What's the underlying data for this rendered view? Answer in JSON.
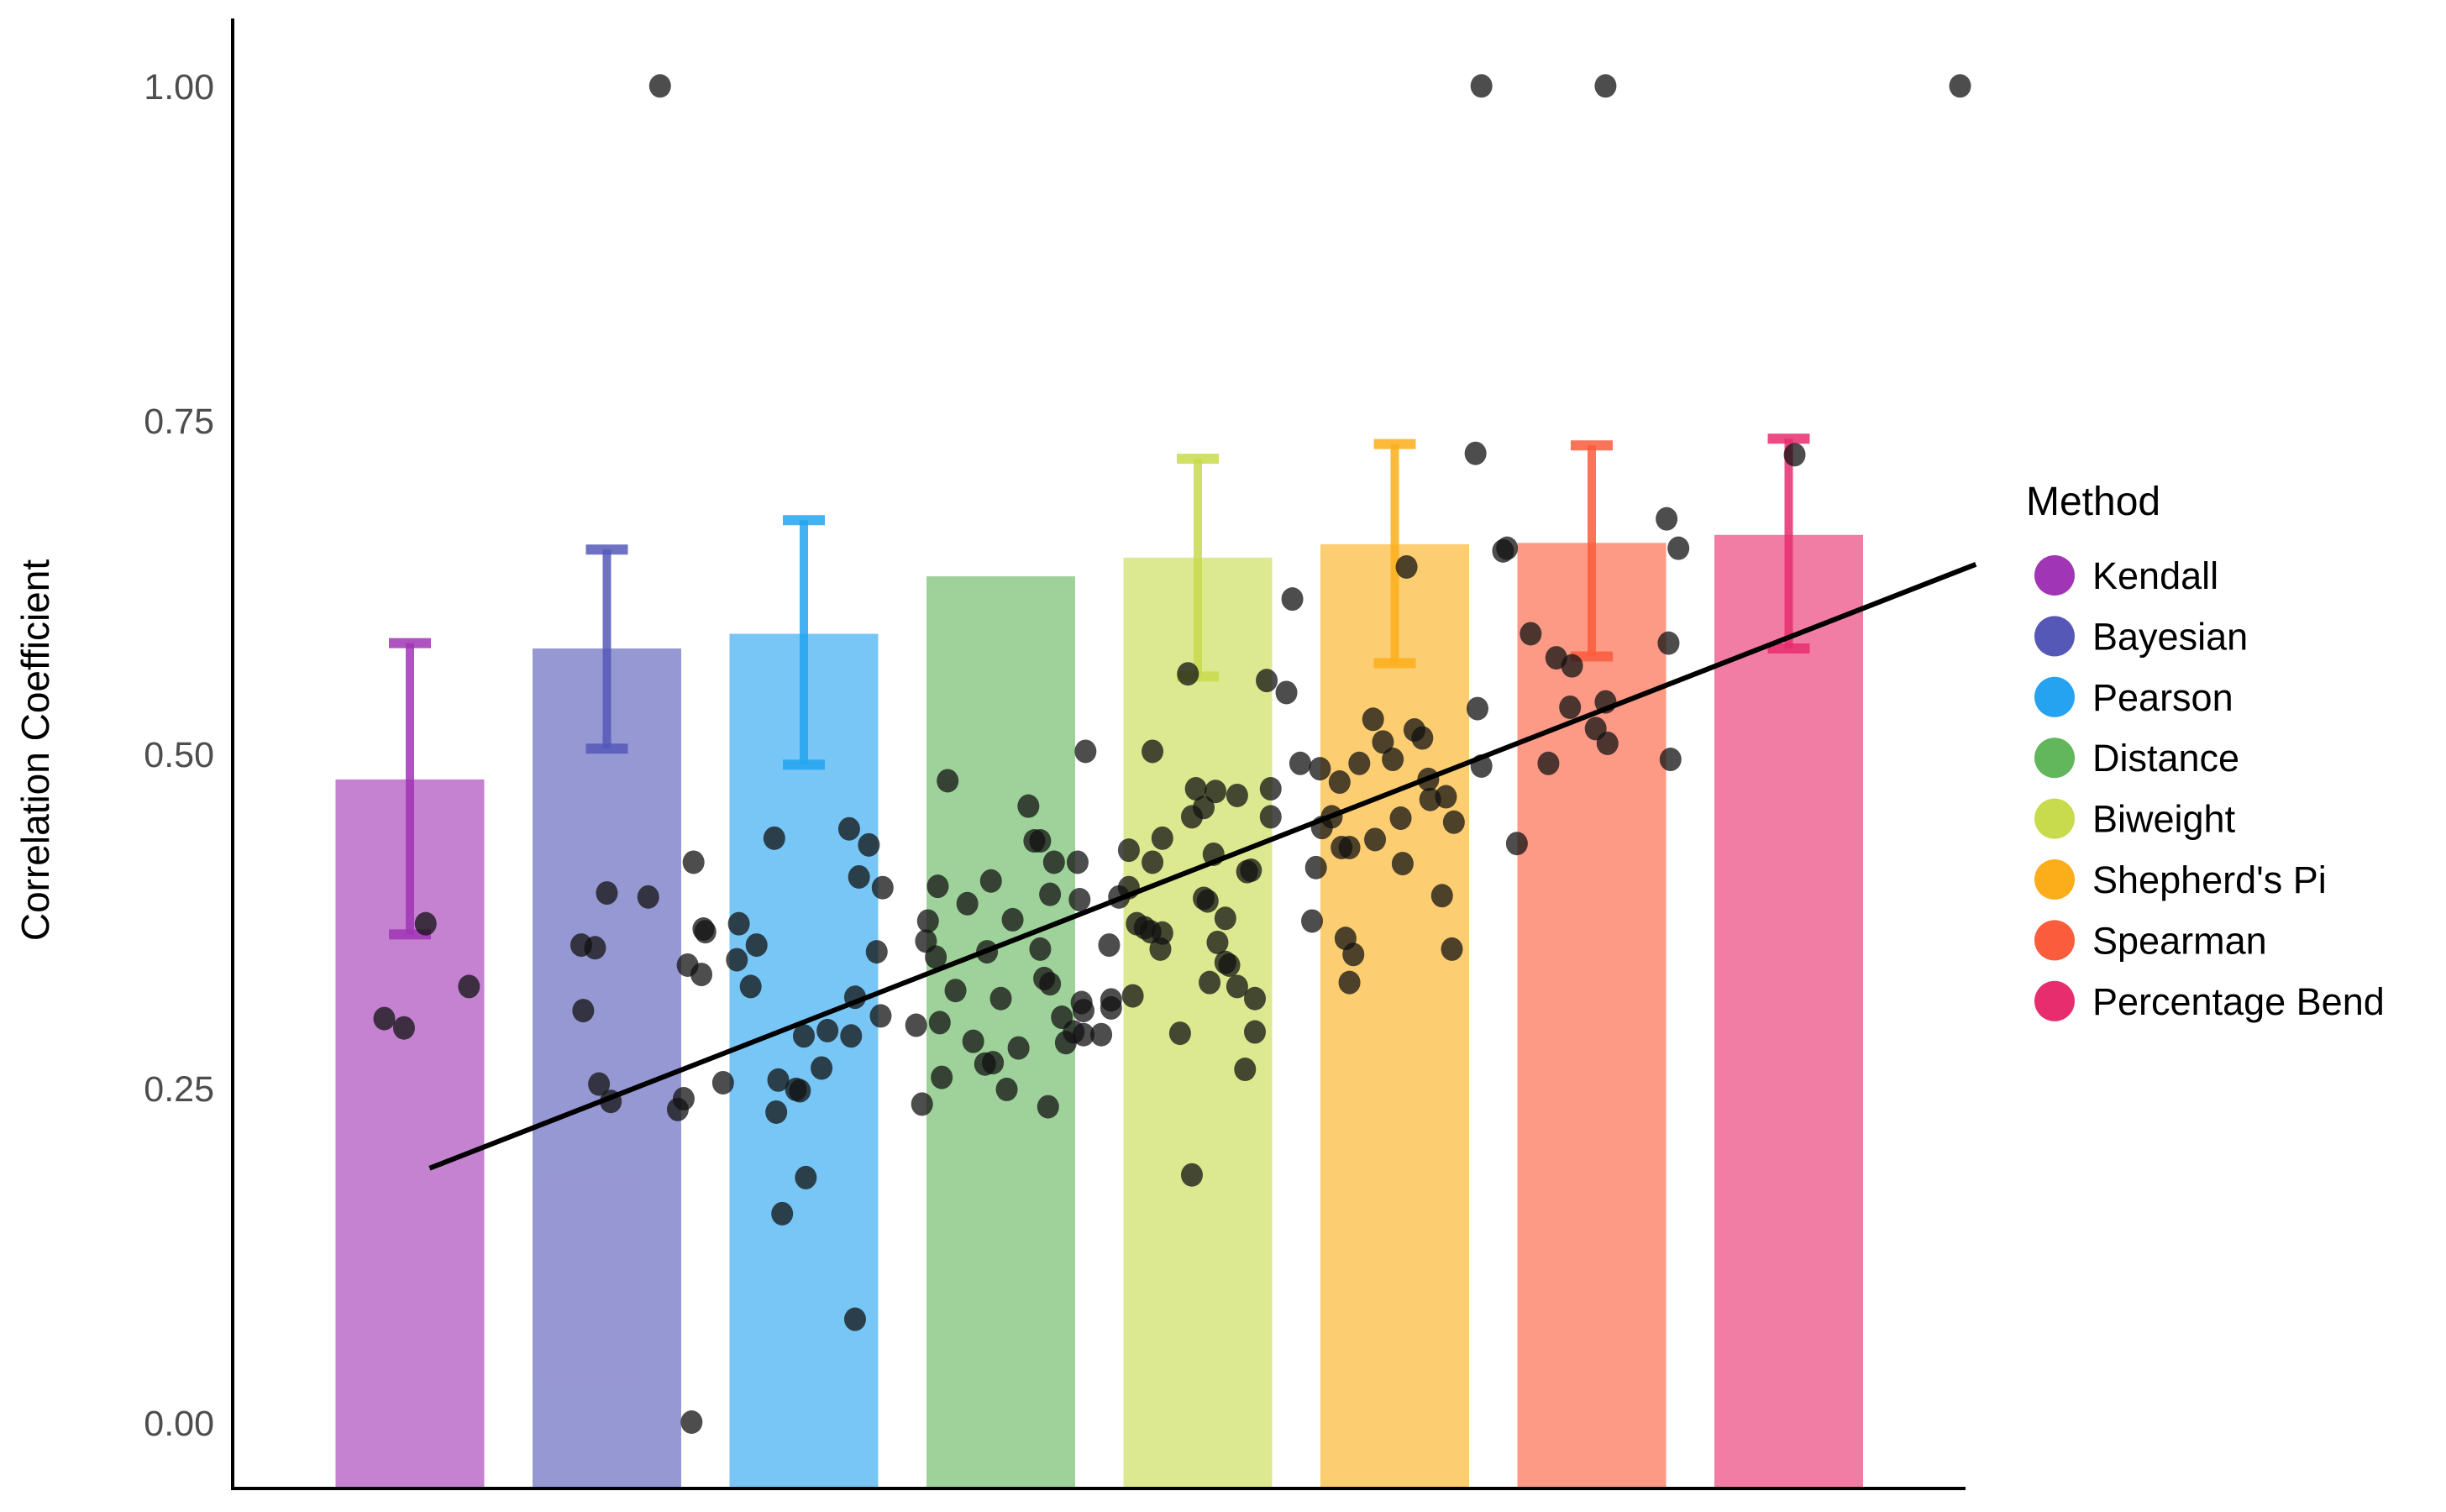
{
  "chart_data": {
    "type": "bar",
    "title": "",
    "xlabel": "",
    "ylabel": "Correlation Coefficient",
    "ylim": [
      -0.05,
      1.05
    ],
    "yticks": [
      0.0,
      0.25,
      0.5,
      0.75,
      1.0
    ],
    "ytick_labels": [
      "0.00",
      "0.25",
      "0.50",
      "0.75",
      "1.00"
    ],
    "grid": false,
    "legend_position": "right",
    "legend_title": "Method",
    "categories": [
      "Kendall",
      "Bayesian",
      "Pearson",
      "Distance",
      "Biweight",
      "Shepherd's Pi",
      "Spearman",
      "Percentage Bend"
    ],
    "colors": [
      "#A035B5",
      "#5658B8",
      "#25A3F0",
      "#62B65C",
      "#C8DB4C",
      "#FBAE1A",
      "#FA5C3C",
      "#E82D6E"
    ],
    "values": [
      0.481,
      0.579,
      0.59,
      0.633,
      0.647,
      0.657,
      0.658,
      0.664
    ],
    "error_bars": [
      {
        "upper": 0.583,
        "lower": 0.365
      },
      {
        "upper": 0.653,
        "lower": 0.504
      },
      {
        "upper": 0.675,
        "lower": 0.492
      },
      null,
      {
        "upper": 0.721,
        "lower": 0.558
      },
      {
        "upper": 0.732,
        "lower": 0.568
      },
      {
        "upper": 0.731,
        "lower": 0.573
      },
      {
        "upper": 0.736,
        "lower": 0.579
      }
    ],
    "trend_line": {
      "x_start": 0.1,
      "y_start": 0.19,
      "x_end": 7.95,
      "y_end": 0.642,
      "color": "#000000"
    },
    "scatter_points": [
      [
        -0.13,
        0.302
      ],
      [
        -0.03,
        0.295
      ],
      [
        0.08,
        0.373
      ],
      [
        0.3,
        0.326
      ],
      [
        0.87,
        0.357
      ],
      [
        0.94,
        0.355
      ],
      [
        0.88,
        0.308
      ],
      [
        0.96,
        0.253
      ],
      [
        1.02,
        0.24
      ],
      [
        1.0,
        0.396
      ],
      [
        1.21,
        0.393
      ],
      [
        1.44,
        0.419
      ],
      [
        1.36,
        0.234
      ],
      [
        1.39,
        0.242
      ],
      [
        1.59,
        0.254
      ],
      [
        1.41,
        0.342
      ],
      [
        1.48,
        0.335
      ],
      [
        1.49,
        0.369
      ],
      [
        1.5,
        0.367
      ],
      [
        1.67,
        0.373
      ],
      [
        1.66,
        0.346
      ],
      [
        1.73,
        0.326
      ],
      [
        1.76,
        0.357
      ],
      [
        1.85,
        0.437
      ],
      [
        1.86,
        0.232
      ],
      [
        1.87,
        0.256
      ],
      [
        1.89,
        0.156
      ],
      [
        1.96,
        0.249
      ],
      [
        1.98,
        0.248
      ],
      [
        2.0,
        0.289
      ],
      [
        2.01,
        0.183
      ],
      [
        2.09,
        0.265
      ],
      [
        2.12,
        0.293
      ],
      [
        2.23,
        0.444
      ],
      [
        2.28,
        0.408
      ],
      [
        2.33,
        0.432
      ],
      [
        2.24,
        0.289
      ],
      [
        2.26,
        0.318
      ],
      [
        2.37,
        0.352
      ],
      [
        2.4,
        0.4
      ],
      [
        2.39,
        0.304
      ],
      [
        2.57,
        0.297
      ],
      [
        2.6,
        0.238
      ],
      [
        2.62,
        0.36
      ],
      [
        2.63,
        0.375
      ],
      [
        2.67,
        0.348
      ],
      [
        2.68,
        0.401
      ],
      [
        2.7,
        0.258
      ],
      [
        2.69,
        0.299
      ],
      [
        2.73,
        0.48
      ],
      [
        2.77,
        0.323
      ],
      [
        2.83,
        0.388
      ],
      [
        2.86,
        0.285
      ],
      [
        2.92,
        0.268
      ],
      [
        2.93,
        0.352
      ],
      [
        2.95,
        0.405
      ],
      [
        2.96,
        0.269
      ],
      [
        3.0,
        0.317
      ],
      [
        3.03,
        0.249
      ],
      [
        3.06,
        0.376
      ],
      [
        3.09,
        0.28
      ],
      [
        3.14,
        0.461
      ],
      [
        3.17,
        0.435
      ],
      [
        3.2,
        0.435
      ],
      [
        3.2,
        0.354
      ],
      [
        3.22,
        0.332
      ],
      [
        3.24,
        0.236
      ],
      [
        3.25,
        0.328
      ],
      [
        3.25,
        0.395
      ],
      [
        3.27,
        0.419
      ],
      [
        3.31,
        0.303
      ],
      [
        3.33,
        0.284
      ],
      [
        3.37,
        0.292
      ],
      [
        3.39,
        0.419
      ],
      [
        3.4,
        0.391
      ],
      [
        3.42,
        0.308
      ],
      [
        3.41,
        0.314
      ],
      [
        3.42,
        0.29
      ],
      [
        3.43,
        0.502
      ],
      [
        3.51,
        0.29
      ],
      [
        3.55,
        0.357
      ],
      [
        3.56,
        0.31
      ],
      [
        3.56,
        0.316
      ],
      [
        3.6,
        0.393
      ],
      [
        3.65,
        0.428
      ],
      [
        3.65,
        0.4
      ],
      [
        3.67,
        0.319
      ],
      [
        3.69,
        0.373
      ],
      [
        3.73,
        0.37
      ],
      [
        3.76,
        0.367
      ],
      [
        3.77,
        0.502
      ],
      [
        3.77,
        0.419
      ],
      [
        3.82,
        0.437
      ],
      [
        3.82,
        0.366
      ],
      [
        3.81,
        0.354
      ],
      [
        3.91,
        0.291
      ],
      [
        3.95,
        0.56
      ],
      [
        3.97,
        0.185
      ],
      [
        3.97,
        0.453
      ],
      [
        3.99,
        0.474
      ],
      [
        4.03,
        0.392
      ],
      [
        4.03,
        0.46
      ],
      [
        4.05,
        0.39
      ],
      [
        4.06,
        0.329
      ],
      [
        4.08,
        0.425
      ],
      [
        4.09,
        0.472
      ],
      [
        4.1,
        0.359
      ],
      [
        4.14,
        0.377
      ],
      [
        4.14,
        0.344
      ],
      [
        4.16,
        0.342
      ],
      [
        4.2,
        0.326
      ],
      [
        4.2,
        0.469
      ],
      [
        4.24,
        0.264
      ],
      [
        4.25,
        0.412
      ],
      [
        4.27,
        0.413
      ],
      [
        4.29,
        0.292
      ],
      [
        4.29,
        0.317
      ],
      [
        4.35,
        0.555
      ],
      [
        4.37,
        0.474
      ],
      [
        4.37,
        0.453
      ],
      [
        4.45,
        0.546
      ],
      [
        4.48,
        0.616
      ],
      [
        4.52,
        0.493
      ],
      [
        4.58,
        0.375
      ],
      [
        4.6,
        0.415
      ],
      [
        4.62,
        0.489
      ],
      [
        4.63,
        0.445
      ],
      [
        4.68,
        0.453
      ],
      [
        4.72,
        0.479
      ],
      [
        4.73,
        0.43
      ],
      [
        4.75,
        0.362
      ],
      [
        4.77,
        0.43
      ],
      [
        4.79,
        0.35
      ],
      [
        4.77,
        0.329
      ],
      [
        4.82,
        0.493
      ],
      [
        4.89,
        0.526
      ],
      [
        4.9,
        0.436
      ],
      [
        4.94,
        0.509
      ],
      [
        4.99,
        0.496
      ],
      [
        5.03,
        0.452
      ],
      [
        5.04,
        0.418
      ],
      [
        5.06,
        0.64
      ],
      [
        5.1,
        0.518
      ],
      [
        5.14,
        0.512
      ],
      [
        5.17,
        0.481
      ],
      [
        5.18,
        0.466
      ],
      [
        5.24,
        0.394
      ],
      [
        5.26,
        0.468
      ],
      [
        5.3,
        0.449
      ],
      [
        5.29,
        0.354
      ],
      [
        5.41,
        0.725
      ],
      [
        5.42,
        0.534
      ],
      [
        5.44,
        0.491
      ],
      [
        5.55,
        0.652
      ],
      [
        5.57,
        0.654
      ],
      [
        5.62,
        0.433
      ],
      [
        5.69,
        0.59
      ],
      [
        5.78,
        0.493
      ],
      [
        5.82,
        0.572
      ],
      [
        5.9,
        0.566
      ],
      [
        5.89,
        0.535
      ],
      [
        6.02,
        0.519
      ],
      [
        6.07,
        0.539
      ],
      [
        6.08,
        0.508
      ],
      [
        6.38,
        0.676
      ],
      [
        6.39,
        0.583
      ],
      [
        6.4,
        0.496
      ],
      [
        6.44,
        0.654
      ],
      [
        7.03,
        0.724
      ],
      [
        1.27,
        1.0
      ],
      [
        5.44,
        1.0
      ],
      [
        6.07,
        1.0
      ],
      [
        7.87,
        1.0
      ],
      [
        1.43,
        0.0
      ],
      [
        2.26,
        0.077
      ]
    ]
  },
  "legend": {
    "title": "Method",
    "items": [
      {
        "label": "Kendall",
        "color": "#A035B5"
      },
      {
        "label": "Bayesian",
        "color": "#5658B8"
      },
      {
        "label": "Pearson",
        "color": "#25A3F0"
      },
      {
        "label": "Distance",
        "color": "#62B65C"
      },
      {
        "label": "Biweight",
        "color": "#C8DB4C"
      },
      {
        "label": "Shepherd's Pi",
        "color": "#FBAE1A"
      },
      {
        "label": "Spearman",
        "color": "#FA5C3C"
      },
      {
        "label": "Percentage Bend",
        "color": "#E82D6E"
      }
    ]
  },
  "axes": {
    "y_title": "Correlation Coefficient",
    "y_ticks": [
      {
        "value": 1.0,
        "label": "1.00"
      },
      {
        "value": 0.75,
        "label": "0.75"
      },
      {
        "value": 0.5,
        "label": "0.50"
      },
      {
        "value": 0.25,
        "label": "0.25"
      },
      {
        "value": 0.0,
        "label": "0.00"
      }
    ]
  }
}
